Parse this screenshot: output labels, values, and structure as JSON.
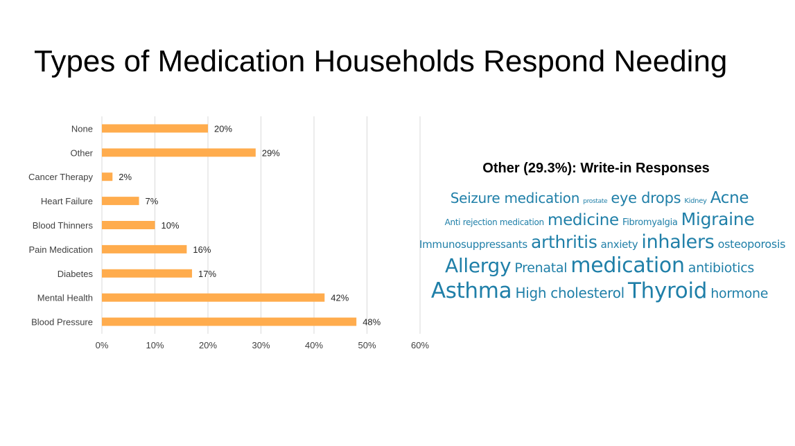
{
  "slide": {
    "title": "Types of Medication Households Respond Needing"
  },
  "chart_data": {
    "type": "bar",
    "orientation": "horizontal",
    "categories": [
      "None",
      "Other",
      "Cancer Therapy",
      "Heart Failure",
      "Blood Thinners",
      "Pain Medication",
      "Diabetes",
      "Mental Health",
      "Blood Pressure"
    ],
    "values": [
      20,
      29,
      2,
      7,
      10,
      16,
      17,
      42,
      48
    ],
    "data_labels": [
      "20%",
      "29%",
      "2%",
      "7%",
      "10%",
      "16%",
      "17%",
      "42%",
      "48%"
    ],
    "x_ticks": [
      "0%",
      "10%",
      "20%",
      "30%",
      "40%",
      "50%",
      "60%"
    ],
    "xlim": [
      0,
      60
    ],
    "grid": true,
    "bar_color": "#ffac4d"
  },
  "word_cloud": {
    "title": "Other (29.3%):  Write-in Responses",
    "color": "#1f7fa8",
    "lines": [
      [
        {
          "text": "Seizure medication",
          "size": 20
        },
        {
          "text": "prostate",
          "size": 9
        },
        {
          "text": "eye drops",
          "size": 21
        },
        {
          "text": "Kidney",
          "size": 10
        },
        {
          "text": "Acne",
          "size": 23
        }
      ],
      [
        {
          "text": "Anti rejection medication",
          "size": 12
        },
        {
          "text": "medicine",
          "size": 23
        },
        {
          "text": "Fibromyalgia",
          "size": 13
        },
        {
          "text": "Migraine",
          "size": 25
        }
      ],
      [
        {
          "text": "Immunosuppressants",
          "size": 15
        },
        {
          "text": "arthritis",
          "size": 25
        },
        {
          "text": "anxiety",
          "size": 15
        },
        {
          "text": "inhalers",
          "size": 27
        },
        {
          "text": "osteoporosis",
          "size": 16
        }
      ],
      [
        {
          "text": "Allergy",
          "size": 28
        },
        {
          "text": "Prenatal",
          "size": 19
        },
        {
          "text": "medication",
          "size": 30
        },
        {
          "text": "antibiotics",
          "size": 19
        }
      ],
      [
        {
          "text": "Asthma",
          "size": 31
        },
        {
          "text": "High cholesterol",
          "size": 20
        },
        {
          "text": "Thyroid",
          "size": 31
        },
        {
          "text": "hormone",
          "size": 19
        }
      ]
    ]
  }
}
